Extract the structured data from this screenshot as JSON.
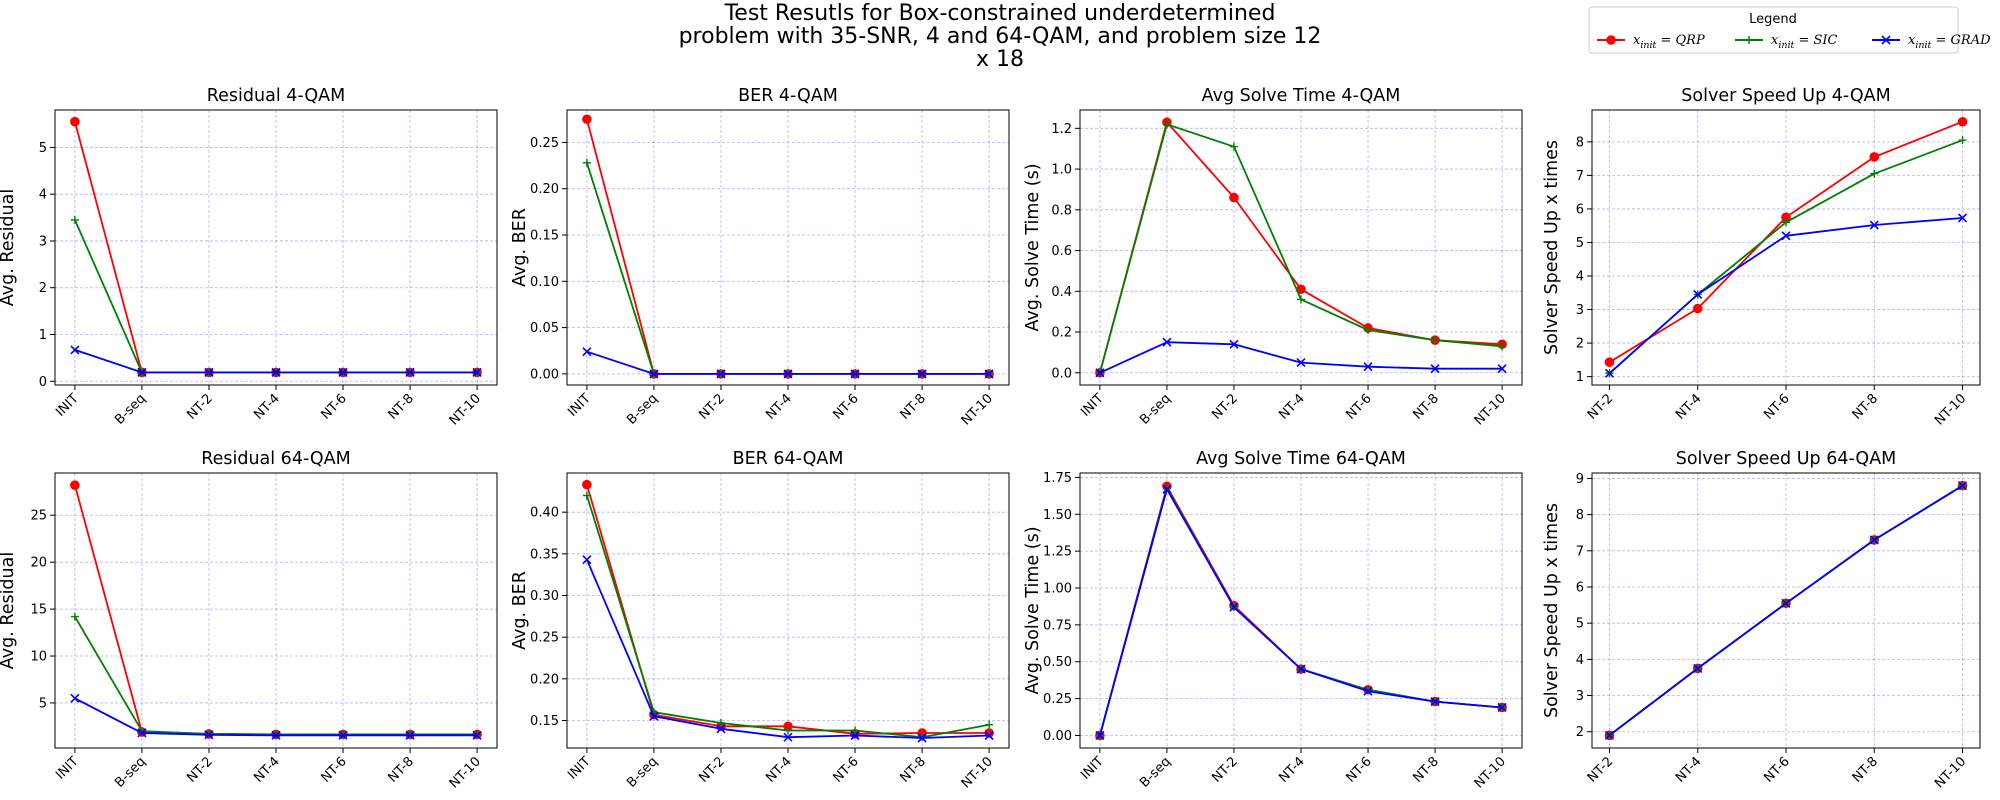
{
  "figure": {
    "title_lines": [
      "Test Resutls for Box-constrained underdetermined",
      "problem with 35-SNR, 4 and 64-QAM, and problem size 12",
      "x 18"
    ]
  },
  "legend": {
    "title": "Legend",
    "entries": [
      {
        "label": "x_init = QRP",
        "sub": "init",
        "text": " = QRP",
        "color": "#ff0000",
        "marker": "circle"
      },
      {
        "label": "x_init = SIC",
        "sub": "init",
        "text": " = SIC",
        "color": "#008000",
        "marker": "plus"
      },
      {
        "label": "x_init = GRAD",
        "sub": "init",
        "text": " = GRAD",
        "color": "#0000ff",
        "marker": "x"
      }
    ]
  },
  "chart_data": [
    {
      "type": "line",
      "title": "Residual 4-QAM",
      "ylabel": "Avg. Residual",
      "categories": [
        "INIT",
        "B-seq",
        "NT-2",
        "NT-4",
        "NT-6",
        "NT-8",
        "NT-10"
      ],
      "ylim": [
        -0.08,
        5.8
      ],
      "yticks": [
        0,
        1,
        2,
        3,
        4,
        5
      ],
      "grid": true,
      "series": [
        {
          "name": "x_init = QRP",
          "color": "#ff0000",
          "marker": "circle",
          "values": [
            5.55,
            0.19,
            0.19,
            0.19,
            0.19,
            0.19,
            0.19
          ]
        },
        {
          "name": "x_init = SIC",
          "color": "#008000",
          "marker": "plus",
          "values": [
            3.45,
            0.19,
            0.19,
            0.19,
            0.19,
            0.19,
            0.19
          ]
        },
        {
          "name": "x_init = GRAD",
          "color": "#0000ff",
          "marker": "x",
          "values": [
            0.67,
            0.19,
            0.19,
            0.19,
            0.19,
            0.19,
            0.19
          ]
        }
      ]
    },
    {
      "type": "line",
      "title": "BER 4-QAM",
      "ylabel": "Avg. BER",
      "categories": [
        "INIT",
        "B-seq",
        "NT-2",
        "NT-4",
        "NT-6",
        "NT-8",
        "NT-10"
      ],
      "ylim": [
        -0.012,
        0.285
      ],
      "yticks": [
        0.0,
        0.05,
        0.1,
        0.15,
        0.2,
        0.25
      ],
      "ytick_decimals": 2,
      "grid": true,
      "series": [
        {
          "name": "x_init = QRP",
          "color": "#ff0000",
          "marker": "circle",
          "values": [
            0.275,
            0.0,
            0.0,
            0.0,
            0.0,
            0.0,
            0.0
          ]
        },
        {
          "name": "x_init = SIC",
          "color": "#008000",
          "marker": "plus",
          "values": [
            0.228,
            0.0,
            0.0,
            0.0,
            0.0,
            0.0,
            0.0
          ]
        },
        {
          "name": "x_init = GRAD",
          "color": "#0000ff",
          "marker": "x",
          "values": [
            0.024,
            0.0,
            0.0,
            0.0,
            0.0,
            0.0,
            0.0
          ]
        }
      ]
    },
    {
      "type": "line",
      "title": "Avg Solve Time 4-QAM",
      "ylabel": "Avg. Solve Time (s)",
      "categories": [
        "INIT",
        "B-seq",
        "NT-2",
        "NT-4",
        "NT-6",
        "NT-8",
        "NT-10"
      ],
      "ylim": [
        -0.06,
        1.29
      ],
      "yticks": [
        0.0,
        0.2,
        0.4,
        0.6,
        0.8,
        1.0,
        1.2
      ],
      "ytick_decimals": 1,
      "grid": true,
      "series": [
        {
          "name": "x_init = QRP",
          "color": "#ff0000",
          "marker": "circle",
          "values": [
            0.0,
            1.23,
            0.86,
            0.41,
            0.22,
            0.16,
            0.14
          ]
        },
        {
          "name": "x_init = SIC",
          "color": "#008000",
          "marker": "plus",
          "values": [
            0.0,
            1.22,
            1.11,
            0.36,
            0.21,
            0.16,
            0.13
          ]
        },
        {
          "name": "x_init = GRAD",
          "color": "#0000ff",
          "marker": "x",
          "values": [
            0.0,
            0.15,
            0.14,
            0.05,
            0.03,
            0.02,
            0.02
          ]
        }
      ]
    },
    {
      "type": "line",
      "title": "Solver Speed Up 4-QAM",
      "ylabel": "Solver Speed Up x times",
      "categories": [
        "NT-2",
        "NT-4",
        "NT-6",
        "NT-8",
        "NT-10"
      ],
      "ylim": [
        0.75,
        8.95
      ],
      "yticks": [
        1,
        2,
        3,
        4,
        5,
        6,
        7,
        8
      ],
      "grid": true,
      "series": [
        {
          "name": "x_init = QRP",
          "color": "#ff0000",
          "marker": "circle",
          "values": [
            1.43,
            3.03,
            5.75,
            7.55,
            8.6
          ]
        },
        {
          "name": "x_init = SIC",
          "color": "#008000",
          "marker": "plus",
          "values": [
            1.1,
            3.45,
            5.6,
            7.05,
            8.05
          ]
        },
        {
          "name": "x_init = GRAD",
          "color": "#0000ff",
          "marker": "x",
          "values": [
            1.1,
            3.45,
            5.2,
            5.52,
            5.73
          ]
        }
      ]
    },
    {
      "type": "line",
      "title": "Residual 64-QAM",
      "ylabel": "Avg. Residual",
      "categories": [
        "INIT",
        "B-seq",
        "NT-2",
        "NT-4",
        "NT-6",
        "NT-8",
        "NT-10"
      ],
      "ylim": [
        0.2,
        29.5
      ],
      "yticks": [
        5,
        10,
        15,
        20,
        25
      ],
      "grid": true,
      "series": [
        {
          "name": "x_init = QRP",
          "color": "#ff0000",
          "marker": "circle",
          "values": [
            28.2,
            1.9,
            1.7,
            1.65,
            1.65,
            1.65,
            1.65
          ]
        },
        {
          "name": "x_init = SIC",
          "color": "#008000",
          "marker": "plus",
          "values": [
            14.2,
            2.0,
            1.7,
            1.65,
            1.65,
            1.65,
            1.65
          ]
        },
        {
          "name": "x_init = GRAD",
          "color": "#0000ff",
          "marker": "x",
          "values": [
            5.5,
            1.8,
            1.6,
            1.55,
            1.55,
            1.55,
            1.55
          ]
        }
      ]
    },
    {
      "type": "line",
      "title": "BER 64-QAM",
      "ylabel": "Avg. BER",
      "categories": [
        "INIT",
        "B-seq",
        "NT-2",
        "NT-4",
        "NT-6",
        "NT-8",
        "NT-10"
      ],
      "ylim": [
        0.117,
        0.447
      ],
      "yticks": [
        0.15,
        0.2,
        0.25,
        0.3,
        0.35,
        0.4
      ],
      "ytick_decimals": 2,
      "grid": true,
      "series": [
        {
          "name": "x_init = QRP",
          "color": "#ff0000",
          "marker": "circle",
          "values": [
            0.433,
            0.157,
            0.143,
            0.143,
            0.134,
            0.135,
            0.135
          ]
        },
        {
          "name": "x_init = SIC",
          "color": "#008000",
          "marker": "plus",
          "values": [
            0.42,
            0.16,
            0.147,
            0.138,
            0.138,
            0.13,
            0.145
          ]
        },
        {
          "name": "x_init = GRAD",
          "color": "#0000ff",
          "marker": "x",
          "values": [
            0.343,
            0.155,
            0.14,
            0.13,
            0.132,
            0.129,
            0.132
          ]
        }
      ]
    },
    {
      "type": "line",
      "title": "Avg Solve Time 64-QAM",
      "ylabel": "Avg. Solve Time (s)",
      "categories": [
        "INIT",
        "B-seq",
        "NT-2",
        "NT-4",
        "NT-6",
        "NT-8",
        "NT-10"
      ],
      "ylim": [
        -0.085,
        1.78
      ],
      "yticks": [
        0.0,
        0.25,
        0.5,
        0.75,
        1.0,
        1.25,
        1.5,
        1.75
      ],
      "ytick_decimals": 2,
      "grid": true,
      "series": [
        {
          "name": "x_init = QRP",
          "color": "#ff0000",
          "marker": "circle",
          "values": [
            0.0,
            1.69,
            0.88,
            0.45,
            0.31,
            0.23,
            0.19
          ]
        },
        {
          "name": "x_init = SIC",
          "color": "#008000",
          "marker": "plus",
          "values": [
            0.0,
            1.68,
            0.87,
            0.45,
            0.31,
            0.23,
            0.19
          ]
        },
        {
          "name": "x_init = GRAD",
          "color": "#0000ff",
          "marker": "x",
          "values": [
            0.0,
            1.67,
            0.87,
            0.45,
            0.3,
            0.23,
            0.19
          ]
        }
      ]
    },
    {
      "type": "line",
      "title": "Solver Speed Up 64-QAM",
      "ylabel": "Solver Speed Up x times",
      "categories": [
        "NT-2",
        "NT-4",
        "NT-6",
        "NT-8",
        "NT-10"
      ],
      "ylim": [
        1.55,
        9.15
      ],
      "yticks": [
        2,
        3,
        4,
        5,
        6,
        7,
        8,
        9
      ],
      "grid": true,
      "series": [
        {
          "name": "x_init = QRP",
          "color": "#ff0000",
          "marker": "circle",
          "values": [
            1.9,
            3.75,
            5.55,
            7.3,
            8.8
          ]
        },
        {
          "name": "x_init = SIC",
          "color": "#008000",
          "marker": "plus",
          "values": [
            1.9,
            3.75,
            5.55,
            7.3,
            8.8
          ]
        },
        {
          "name": "x_init = GRAD",
          "color": "#0000ff",
          "marker": "x",
          "values": [
            1.9,
            3.75,
            5.55,
            7.3,
            8.8
          ]
        }
      ]
    }
  ]
}
